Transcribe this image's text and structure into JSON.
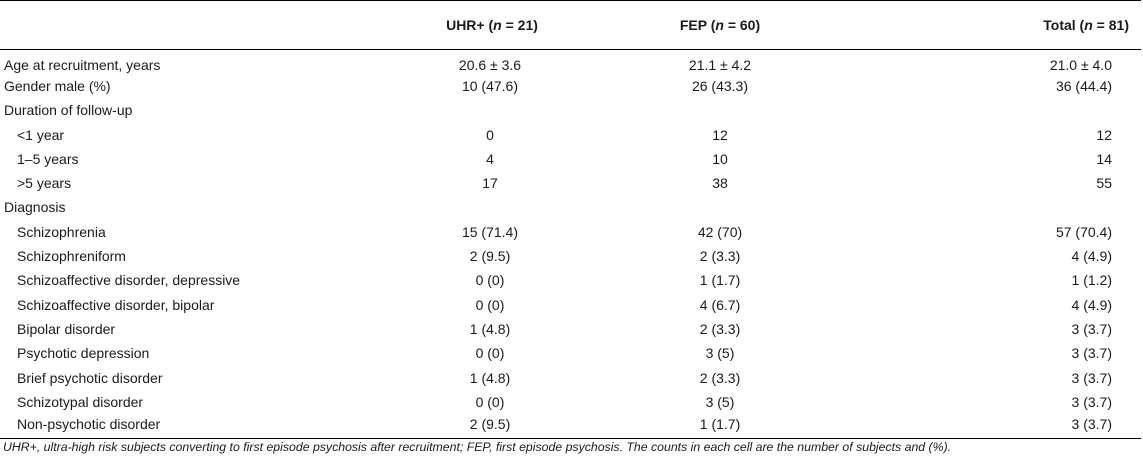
{
  "header": {
    "col_label": "",
    "col_uhr": "UHR+ (n = 21)",
    "col_fep": "FEP (n = 60)",
    "col_total": "Total (n = 81)"
  },
  "rows": [
    {
      "label": "Age at recruitment, years",
      "uhr": "20.6 ± 3.6",
      "fep": "21.1 ± 4.2",
      "total": "21.0 ± 4.0"
    },
    {
      "label": "Gender male (%)",
      "uhr": "10 (47.6)",
      "fep": "26 (43.3)",
      "total": "36 (44.4)"
    },
    {
      "label": "Duration of follow-up",
      "uhr": "",
      "fep": "",
      "total": ""
    },
    {
      "label": "<1 year",
      "uhr": "0",
      "fep": "12",
      "total": "12"
    },
    {
      "label": "1–5 years",
      "uhr": "4",
      "fep": "10",
      "total": "14"
    },
    {
      "label": ">5 years",
      "uhr": "17",
      "fep": "38",
      "total": "55"
    },
    {
      "label": "Diagnosis",
      "uhr": "",
      "fep": "",
      "total": ""
    },
    {
      "label": "Schizophrenia",
      "uhr": "15 (71.4)",
      "fep": "42 (70)",
      "total": "57 (70.4)"
    },
    {
      "label": "Schizophreniform",
      "uhr": "2 (9.5)",
      "fep": "2 (3.3)",
      "total": "4 (4.9)"
    },
    {
      "label": "Schizoaffective disorder, depressive",
      "uhr": "0 (0)",
      "fep": "1 (1.7)",
      "total": "1 (1.2)"
    },
    {
      "label": "Schizoaffective disorder, bipolar",
      "uhr": "0 (0)",
      "fep": "4 (6.7)",
      "total": "4 (4.9)"
    },
    {
      "label": "Bipolar disorder",
      "uhr": "1 (4.8)",
      "fep": "2 (3.3)",
      "total": "3 (3.7)"
    },
    {
      "label": "Psychotic depression",
      "uhr": "0 (0)",
      "fep": "3 (5)",
      "total": "3 (3.7)"
    },
    {
      "label": "Brief psychotic disorder",
      "uhr": "1 (4.8)",
      "fep": "2 (3.3)",
      "total": "3 (3.7)"
    },
    {
      "label": "Schizotypal disorder",
      "uhr": "0 (0)",
      "fep": "3 (5)",
      "total": "3 (3.7)"
    },
    {
      "label": "Non-psychotic disorder",
      "uhr": "2 (9.5)",
      "fep": "1 (1.7)",
      "total": "3 (3.7)"
    }
  ],
  "footnote": "UHR+, ultra-high risk subjects converting to first episode psychosis after recruitment; FEP, first episode psychosis. The counts in each cell are the number of subjects and (%)."
}
